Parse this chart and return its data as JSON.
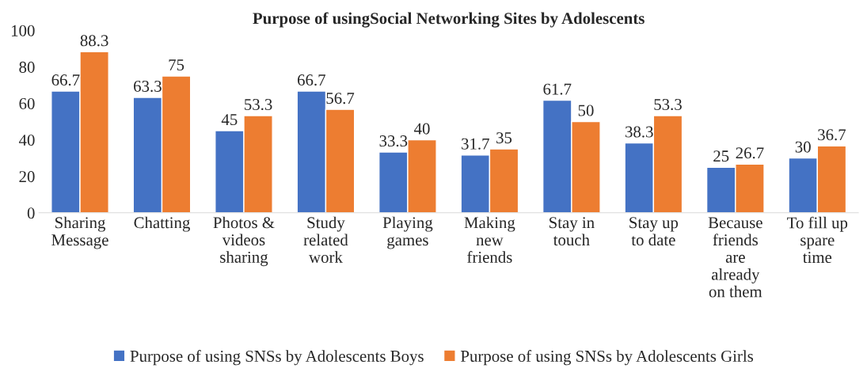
{
  "chart_data": {
    "type": "bar",
    "title": "Purpose of usingSocial Networking Sites by Adolescents",
    "categories": [
      "Sharing\nMessage",
      "Chatting",
      "Photos &\nvideos\nsharing",
      "Study\nrelated\nwork",
      "Playing\ngames",
      "Making\nnew\nfriends",
      "Stay in\ntouch",
      "Stay up\nto date",
      "Because\nfriends\nare\nalready\non them",
      "To fill up\nspare\ntime"
    ],
    "series": [
      {
        "name": "Purpose of using SNSs by Adolescents Boys",
        "color": "#4472c4",
        "values": [
          66.7,
          63.3,
          45,
          66.7,
          33.3,
          31.7,
          61.7,
          38.3,
          25,
          30
        ]
      },
      {
        "name": "Purpose of using SNSs by Adolescents Girls",
        "color": "#ed7d31",
        "values": [
          88.3,
          75,
          53.3,
          56.7,
          40,
          35,
          50,
          53.3,
          26.7,
          36.7
        ]
      }
    ],
    "ylim": [
      0,
      100
    ],
    "yticks": [
      0,
      20,
      40,
      60,
      80,
      100
    ],
    "grid": false,
    "legend": "bottom",
    "data_labels": true
  }
}
